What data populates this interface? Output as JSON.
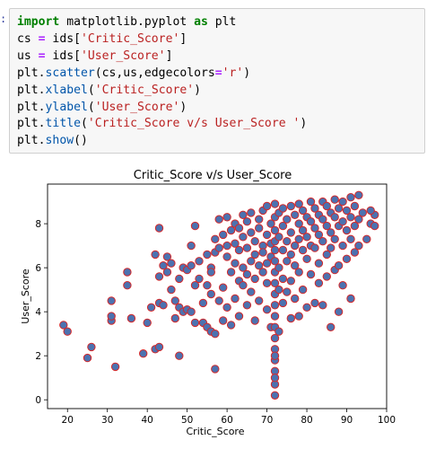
{
  "notebook": {
    "prompt": ":",
    "code": {
      "line1": {
        "kw1": "import",
        "mid": " matplotlib.pyplot ",
        "kw2": "as",
        "end": " plt"
      },
      "line2": {
        "a": "cs ",
        "op": "=",
        "b": " ids[",
        "s": "'Critic_Score'",
        "c": "]"
      },
      "line3": {
        "a": "us ",
        "op": "=",
        "b": " ids[",
        "s": "'User_Score'",
        "c": "]"
      },
      "line4": {
        "a": "plt.",
        "f": "scatter",
        "b": "(cs,us,edgecolors",
        "op": "=",
        "s": "'r'",
        "c": ")"
      },
      "line5": {
        "a": "plt.",
        "f": "xlabel",
        "b": "(",
        "s": "'Critic_Score'",
        "c": ")"
      },
      "line6": {
        "a": "plt.",
        "f": "ylabel",
        "b": "(",
        "s": "'User_Score'",
        "c": ")"
      },
      "line7": {
        "a": "plt.",
        "f": "title",
        "b": "(",
        "s": "'Critic_Score v/s User_Score '",
        "c": ")"
      },
      "line8": {
        "a": "plt.",
        "f": "show",
        "b": "()"
      }
    }
  },
  "chart_data": {
    "type": "scatter",
    "title": "Critic_Score v/s User_Score",
    "xlabel": "Critic_Score",
    "ylabel": "User_Score",
    "xlim": [
      15,
      100
    ],
    "ylim": [
      -0.4,
      9.8
    ],
    "xticks": [
      "20",
      "30",
      "40",
      "50",
      "60",
      "70",
      "80",
      "90",
      "100"
    ],
    "yticks": [
      "0",
      "2",
      "4",
      "6",
      "8"
    ],
    "grid": false,
    "legend": "none",
    "marker_face_color": "#4c72b0",
    "marker_edge_color": "#d62728",
    "points": [
      [
        19,
        3.4
      ],
      [
        20,
        3.1
      ],
      [
        25,
        1.9
      ],
      [
        26,
        2.4
      ],
      [
        31,
        4.5
      ],
      [
        31,
        3.6
      ],
      [
        32,
        1.5
      ],
      [
        31,
        3.8
      ],
      [
        35,
        5.8
      ],
      [
        35,
        5.2
      ],
      [
        36,
        3.7
      ],
      [
        39,
        2.1
      ],
      [
        40,
        3.5
      ],
      [
        41,
        4.2
      ],
      [
        42,
        2.3
      ],
      [
        43,
        2.4
      ],
      [
        42,
        6.6
      ],
      [
        43,
        7.8
      ],
      [
        44,
        6.1
      ],
      [
        43,
        5.6
      ],
      [
        43,
        4.4
      ],
      [
        44,
        4.3
      ],
      [
        45,
        5.8
      ],
      [
        45,
        6.5
      ],
      [
        46,
        6.2
      ],
      [
        46,
        5.0
      ],
      [
        47,
        3.7
      ],
      [
        47,
        4.5
      ],
      [
        48,
        2.0
      ],
      [
        48,
        4.2
      ],
      [
        48,
        5.5
      ],
      [
        49,
        4.0
      ],
      [
        49,
        6.0
      ],
      [
        50,
        5.9
      ],
      [
        50,
        4.1
      ],
      [
        51,
        4.0
      ],
      [
        51,
        6.1
      ],
      [
        51,
        7.0
      ],
      [
        52,
        7.9
      ],
      [
        52,
        5.2
      ],
      [
        52,
        3.5
      ],
      [
        53,
        5.5
      ],
      [
        53,
        6.3
      ],
      [
        54,
        3.5
      ],
      [
        54,
        4.4
      ],
      [
        55,
        6.6
      ],
      [
        55,
        5.2
      ],
      [
        55,
        3.3
      ],
      [
        56,
        6.0
      ],
      [
        56,
        3.1
      ],
      [
        56,
        5.8
      ],
      [
        56,
        4.8
      ],
      [
        57,
        7.3
      ],
      [
        57,
        1.4
      ],
      [
        57,
        3.0
      ],
      [
        57,
        6.7
      ],
      [
        58,
        8.2
      ],
      [
        58,
        6.9
      ],
      [
        58,
        4.5
      ],
      [
        59,
        7.5
      ],
      [
        59,
        3.6
      ],
      [
        59,
        5.1
      ],
      [
        60,
        8.3
      ],
      [
        60,
        6.5
      ],
      [
        60,
        4.2
      ],
      [
        60,
        7.0
      ],
      [
        61,
        5.8
      ],
      [
        61,
        3.4
      ],
      [
        61,
        7.7
      ],
      [
        62,
        6.2
      ],
      [
        62,
        4.6
      ],
      [
        62,
        8.0
      ],
      [
        62,
        7.1
      ],
      [
        63,
        5.4
      ],
      [
        63,
        6.8
      ],
      [
        63,
        7.8
      ],
      [
        63,
        3.8
      ],
      [
        64,
        8.4
      ],
      [
        64,
        6.0
      ],
      [
        64,
        5.2
      ],
      [
        64,
        7.4
      ],
      [
        65,
        4.3
      ],
      [
        65,
        6.9
      ],
      [
        65,
        8.1
      ],
      [
        65,
        5.7
      ],
      [
        66,
        7.6
      ],
      [
        66,
        6.3
      ],
      [
        66,
        4.9
      ],
      [
        66,
        8.5
      ],
      [
        67,
        5.5
      ],
      [
        67,
        7.2
      ],
      [
        67,
        6.6
      ],
      [
        67,
        3.6
      ],
      [
        68,
        8.2
      ],
      [
        68,
        6.1
      ],
      [
        68,
        7.8
      ],
      [
        68,
        4.5
      ],
      [
        69,
        7.0
      ],
      [
        69,
        5.8
      ],
      [
        69,
        8.6
      ],
      [
        69,
        6.7
      ],
      [
        70,
        7.5
      ],
      [
        70,
        6.2
      ],
      [
        70,
        8.8
      ],
      [
        70,
        4.1
      ],
      [
        70,
        5.3
      ],
      [
        71,
        8.0
      ],
      [
        71,
        7.1
      ],
      [
        71,
        3.3
      ],
      [
        71,
        6.5
      ],
      [
        72,
        8.9
      ],
      [
        72,
        8.3
      ],
      [
        72,
        7.7
      ],
      [
        72,
        7.2
      ],
      [
        72,
        6.8
      ],
      [
        72,
        6.3
      ],
      [
        72,
        5.8
      ],
      [
        72,
        5.3
      ],
      [
        72,
        4.8
      ],
      [
        72,
        4.3
      ],
      [
        72,
        3.8
      ],
      [
        72,
        3.3
      ],
      [
        72,
        2.8
      ],
      [
        72,
        2.3
      ],
      [
        72,
        1.8
      ],
      [
        72,
        1.3
      ],
      [
        72,
        0.7
      ],
      [
        72,
        0.2
      ],
      [
        72,
        2.0
      ],
      [
        72,
        1.0
      ],
      [
        73,
        8.5
      ],
      [
        73,
        7.4
      ],
      [
        73,
        6.0
      ],
      [
        73,
        5.0
      ],
      [
        73,
        3.1
      ],
      [
        74,
        8.7
      ],
      [
        74,
        7.9
      ],
      [
        74,
        6.8
      ],
      [
        74,
        5.5
      ],
      [
        74,
        4.4
      ],
      [
        75,
        8.2
      ],
      [
        75,
        7.2
      ],
      [
        75,
        6.3
      ],
      [
        75,
        4.9
      ],
      [
        76,
        8.8
      ],
      [
        76,
        7.6
      ],
      [
        76,
        6.6
      ],
      [
        76,
        5.4
      ],
      [
        76,
        3.7
      ],
      [
        77,
        8.4
      ],
      [
        77,
        7.0
      ],
      [
        77,
        6.1
      ],
      [
        77,
        4.6
      ],
      [
        78,
        8.9
      ],
      [
        78,
        8.0
      ],
      [
        78,
        7.3
      ],
      [
        78,
        5.8
      ],
      [
        78,
        3.8
      ],
      [
        79,
        8.6
      ],
      [
        79,
        7.7
      ],
      [
        79,
        6.8
      ],
      [
        79,
        5.0
      ],
      [
        80,
        8.3
      ],
      [
        80,
        7.4
      ],
      [
        80,
        6.4
      ],
      [
        80,
        4.2
      ],
      [
        81,
        9.0
      ],
      [
        81,
        8.1
      ],
      [
        81,
        7.0
      ],
      [
        81,
        5.7
      ],
      [
        82,
        8.7
      ],
      [
        82,
        7.8
      ],
      [
        82,
        6.9
      ],
      [
        82,
        4.4
      ],
      [
        83,
        8.4
      ],
      [
        83,
        7.5
      ],
      [
        83,
        6.2
      ],
      [
        83,
        5.3
      ],
      [
        84,
        9.0
      ],
      [
        84,
        8.2
      ],
      [
        84,
        7.2
      ],
      [
        84,
        4.3
      ],
      [
        85,
        8.8
      ],
      [
        85,
        7.9
      ],
      [
        85,
        6.6
      ],
      [
        85,
        5.6
      ],
      [
        86,
        8.5
      ],
      [
        86,
        7.6
      ],
      [
        86,
        6.9
      ],
      [
        86,
        3.3
      ],
      [
        87,
        9.1
      ],
      [
        87,
        8.3
      ],
      [
        87,
        7.3
      ],
      [
        87,
        5.9
      ],
      [
        88,
        8.7
      ],
      [
        88,
        7.9
      ],
      [
        88,
        6.1
      ],
      [
        88,
        4.0
      ],
      [
        89,
        9.0
      ],
      [
        89,
        8.1
      ],
      [
        89,
        7.0
      ],
      [
        89,
        5.2
      ],
      [
        90,
        8.6
      ],
      [
        90,
        7.7
      ],
      [
        90,
        6.4
      ],
      [
        91,
        9.2
      ],
      [
        91,
        8.3
      ],
      [
        91,
        7.3
      ],
      [
        91,
        4.6
      ],
      [
        92,
        8.8
      ],
      [
        92,
        7.9
      ],
      [
        92,
        6.7
      ],
      [
        93,
        9.3
      ],
      [
        93,
        8.2
      ],
      [
        93,
        7.0
      ],
      [
        94,
        8.5
      ],
      [
        95,
        7.3
      ],
      [
        96,
        8.0
      ],
      [
        97,
        8.4
      ],
      [
        97,
        7.9
      ],
      [
        96,
        8.6
      ]
    ]
  }
}
